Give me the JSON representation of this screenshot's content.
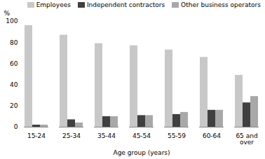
{
  "chart_data": {
    "type": "bar",
    "categories": [
      "15-24",
      "25-34",
      "35-44",
      "45-54",
      "55-59",
      "60-64",
      "65 and\nover"
    ],
    "series": [
      {
        "name": "Employees",
        "color": "#c8c8c8",
        "values": [
          96,
          87,
          79,
          77,
          73,
          66,
          49
        ]
      },
      {
        "name": "Independent contractors",
        "color": "#404040",
        "values": [
          2,
          7,
          10,
          11,
          12,
          16,
          23
        ]
      },
      {
        "name": "Other business operators",
        "color": "#a8a8a8",
        "values": [
          2,
          4,
          10,
          11,
          14,
          16,
          29
        ]
      }
    ],
    "xlabel": "Age group (years)",
    "ylabel": "%",
    "ylim": [
      0,
      100
    ],
    "yticks": [
      0,
      20,
      40,
      60,
      80,
      100
    ],
    "grid": false,
    "legend": "upper right"
  }
}
